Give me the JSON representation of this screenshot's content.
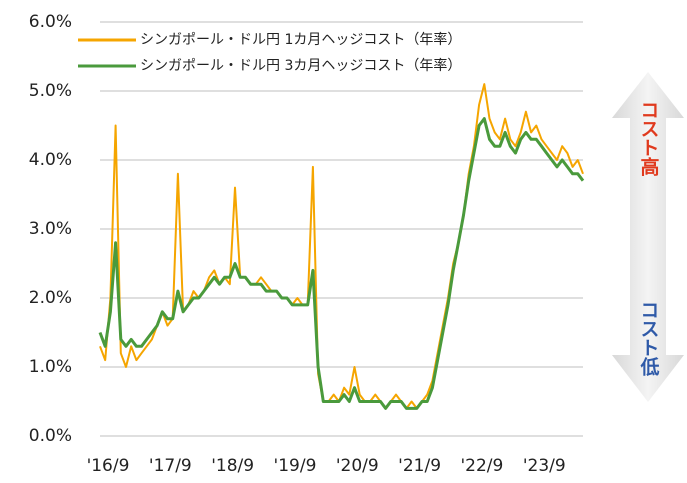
{
  "chart_data": {
    "type": "line",
    "x": [
      "2016-09",
      "2016-10",
      "2016-11",
      "2016-12",
      "2017-01",
      "2017-02",
      "2017-03",
      "2017-04",
      "2017-05",
      "2017-06",
      "2017-07",
      "2017-08",
      "2017-09",
      "2017-10",
      "2017-11",
      "2017-12",
      "2018-01",
      "2018-02",
      "2018-03",
      "2018-04",
      "2018-05",
      "2018-06",
      "2018-07",
      "2018-08",
      "2018-09",
      "2018-10",
      "2018-11",
      "2018-12",
      "2019-01",
      "2019-02",
      "2019-03",
      "2019-04",
      "2019-05",
      "2019-06",
      "2019-07",
      "2019-08",
      "2019-09",
      "2019-10",
      "2019-11",
      "2019-12",
      "2020-01",
      "2020-02",
      "2020-03",
      "2020-04",
      "2020-05",
      "2020-06",
      "2020-07",
      "2020-08",
      "2020-09",
      "2020-10",
      "2020-11",
      "2020-12",
      "2021-01",
      "2021-02",
      "2021-03",
      "2021-04",
      "2021-05",
      "2021-06",
      "2021-07",
      "2021-08",
      "2021-09",
      "2021-10",
      "2021-11",
      "2021-12",
      "2022-01",
      "2022-02",
      "2022-03",
      "2022-04",
      "2022-05",
      "2022-06",
      "2022-07",
      "2022-08",
      "2022-09",
      "2022-10",
      "2022-11",
      "2022-12",
      "2023-01",
      "2023-02",
      "2023-03",
      "2023-04",
      "2023-05",
      "2023-06",
      "2023-07",
      "2023-08",
      "2023-09",
      "2023-10",
      "2023-11",
      "2023-12",
      "2024-01",
      "2024-02",
      "2024-03",
      "2024-04",
      "2024-05",
      "2024-06"
    ],
    "series": [
      {
        "name": "シンガポール・ドル円 1カ月ヘッジコスト（年率）",
        "color": "#f5a500",
        "width": 2,
        "values": [
          1.3,
          1.1,
          2.0,
          4.5,
          1.2,
          1.0,
          1.3,
          1.1,
          1.2,
          1.3,
          1.4,
          1.6,
          1.8,
          1.6,
          1.7,
          3.8,
          1.8,
          1.9,
          2.1,
          2.0,
          2.1,
          2.3,
          2.4,
          2.2,
          2.3,
          2.2,
          3.6,
          2.3,
          2.3,
          2.2,
          2.2,
          2.3,
          2.2,
          2.1,
          2.1,
          2.0,
          2.0,
          1.9,
          2.0,
          1.9,
          1.9,
          3.9,
          0.9,
          0.5,
          0.5,
          0.6,
          0.5,
          0.7,
          0.6,
          1.0,
          0.6,
          0.5,
          0.5,
          0.6,
          0.5,
          0.4,
          0.5,
          0.6,
          0.5,
          0.4,
          0.5,
          0.4,
          0.5,
          0.6,
          0.8,
          1.2,
          1.6,
          2.0,
          2.5,
          2.8,
          3.2,
          3.8,
          4.2,
          4.8,
          5.1,
          4.6,
          4.4,
          4.3,
          4.6,
          4.3,
          4.2,
          4.4,
          4.7,
          4.4,
          4.5,
          4.3,
          4.2,
          4.1,
          4.0,
          4.2,
          4.1,
          3.9,
          4.0,
          3.8
        ]
      },
      {
        "name": "シンガポール・ドル円 3カ月ヘッジコスト（年率）",
        "color": "#4a9a3c",
        "width": 3,
        "values": [
          1.5,
          1.3,
          1.8,
          2.8,
          1.4,
          1.3,
          1.4,
          1.3,
          1.3,
          1.4,
          1.5,
          1.6,
          1.8,
          1.7,
          1.7,
          2.1,
          1.8,
          1.9,
          2.0,
          2.0,
          2.1,
          2.2,
          2.3,
          2.2,
          2.3,
          2.3,
          2.5,
          2.3,
          2.3,
          2.2,
          2.2,
          2.2,
          2.1,
          2.1,
          2.1,
          2.0,
          2.0,
          1.9,
          1.9,
          1.9,
          1.9,
          2.4,
          1.0,
          0.5,
          0.5,
          0.5,
          0.5,
          0.6,
          0.5,
          0.7,
          0.5,
          0.5,
          0.5,
          0.5,
          0.5,
          0.4,
          0.5,
          0.5,
          0.5,
          0.4,
          0.4,
          0.4,
          0.5,
          0.5,
          0.7,
          1.1,
          1.5,
          1.9,
          2.4,
          2.8,
          3.2,
          3.7,
          4.1,
          4.5,
          4.6,
          4.3,
          4.2,
          4.2,
          4.4,
          4.2,
          4.1,
          4.3,
          4.4,
          4.3,
          4.3,
          4.2,
          4.1,
          4.0,
          3.9,
          4.0,
          3.9,
          3.8,
          3.8,
          3.7
        ]
      }
    ],
    "xlim": [
      "2016-09",
      "2024-06"
    ],
    "xticks": [
      {
        "value": "2016-09",
        "label": "'16/9"
      },
      {
        "value": "2017-09",
        "label": "'17/9"
      },
      {
        "value": "2018-09",
        "label": "'18/9"
      },
      {
        "value": "2019-09",
        "label": "'19/9"
      },
      {
        "value": "2020-09",
        "label": "'20/9"
      },
      {
        "value": "2021-09",
        "label": "'21/9"
      },
      {
        "value": "2022-09",
        "label": "'22/9"
      },
      {
        "value": "2023-09",
        "label": "'23/9"
      }
    ],
    "ylim": [
      0,
      6
    ],
    "yticks": [
      {
        "value": 0,
        "label": "0.0%"
      },
      {
        "value": 1,
        "label": "1.0%"
      },
      {
        "value": 2,
        "label": "2.0%"
      },
      {
        "value": 3,
        "label": "3.0%"
      },
      {
        "value": 4,
        "label": "4.0%"
      },
      {
        "value": 5,
        "label": "5.0%"
      },
      {
        "value": 6,
        "label": "6.0%"
      }
    ],
    "grid": true,
    "legend": "upper left",
    "annotations": [
      {
        "text": "コスト高",
        "color": "#e03a1e"
      },
      {
        "text": "コスト低",
        "color": "#2f5aa8"
      }
    ]
  }
}
